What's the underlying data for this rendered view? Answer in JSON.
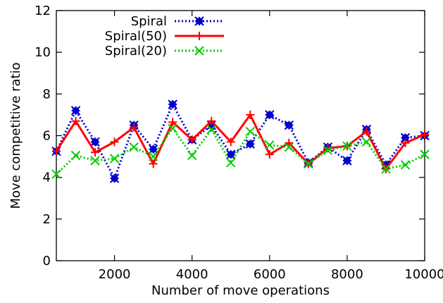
{
  "chart_data": {
    "type": "line",
    "xlabel": "Number of move operations",
    "ylabel": "Move competitive ratio",
    "xlim": [
      500,
      10000
    ],
    "ylim": [
      0,
      12
    ],
    "x_ticks": [
      2000,
      4000,
      6000,
      8000,
      10000
    ],
    "y_ticks": [
      0,
      2,
      4,
      6,
      8,
      10,
      12
    ],
    "legend_position": "top-center",
    "x": [
      500,
      1000,
      1500,
      2000,
      2500,
      3000,
      3500,
      4000,
      4500,
      5000,
      5500,
      6000,
      6500,
      7000,
      7500,
      8000,
      8500,
      9000,
      9500,
      10000
    ],
    "series": [
      {
        "name": "Spiral",
        "color": "#0000cc",
        "style": "dotted",
        "marker": "star-square",
        "values": [
          5.25,
          7.2,
          5.7,
          3.95,
          6.5,
          5.35,
          7.5,
          5.8,
          6.5,
          5.1,
          5.6,
          7.0,
          6.5,
          4.7,
          5.45,
          4.8,
          6.3,
          4.6,
          5.9,
          6.0
        ]
      },
      {
        "name": "Spiral(50)",
        "color": "#ff0000",
        "style": "solid",
        "marker": "plus",
        "values": [
          5.25,
          6.7,
          5.2,
          5.7,
          6.4,
          4.65,
          6.65,
          5.8,
          6.7,
          5.7,
          7.0,
          5.1,
          5.65,
          4.65,
          5.4,
          5.5,
          6.2,
          4.4,
          5.65,
          6.05
        ]
      },
      {
        "name": "Spiral(20)",
        "color": "#00cc00",
        "style": "dotted",
        "marker": "cross",
        "values": [
          4.15,
          5.05,
          4.8,
          4.9,
          5.45,
          5.0,
          6.35,
          5.05,
          6.3,
          4.7,
          6.2,
          5.55,
          5.45,
          4.65,
          5.3,
          5.5,
          5.7,
          4.4,
          4.6,
          5.1
        ]
      }
    ]
  }
}
